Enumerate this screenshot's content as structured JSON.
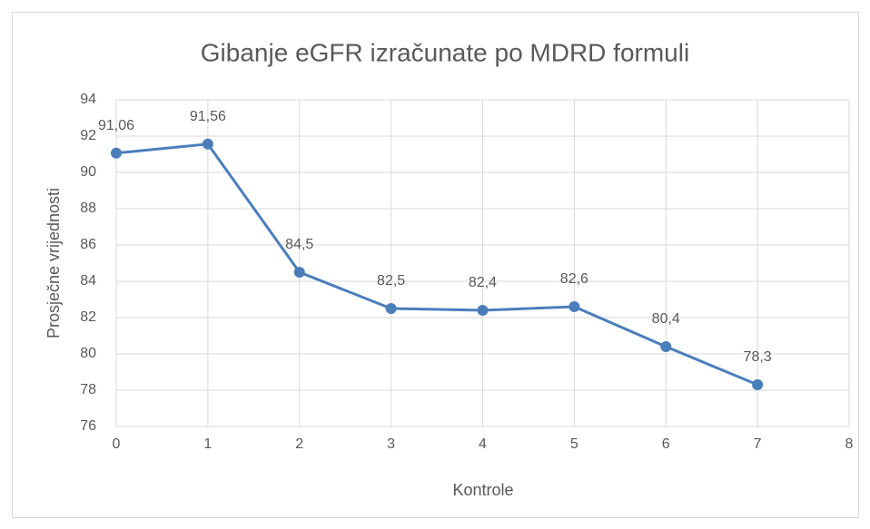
{
  "chart_data": {
    "type": "line",
    "title": "Gibanje eGFR izračunate po MDRD formuli",
    "x_label": "Kontrole",
    "y_label": "Prosječne vrijednosti",
    "x": [
      0,
      1,
      2,
      3,
      4,
      5,
      6,
      7
    ],
    "values": [
      91.06,
      91.56,
      84.5,
      82.5,
      82.4,
      82.6,
      80.4,
      78.3
    ],
    "value_labels": [
      "91,06",
      "91,56",
      "84,5",
      "82,5",
      "82,4",
      "82,6",
      "80,4",
      "78,3"
    ],
    "color": "#4a7ebb",
    "xlim": [
      0,
      8
    ],
    "xticks": [
      0,
      1,
      2,
      3,
      4,
      5,
      6,
      7,
      8
    ],
    "ylim": [
      76,
      94
    ],
    "yticks": [
      76,
      78,
      80,
      82,
      84,
      86,
      88,
      90,
      92,
      94
    ],
    "grid": true
  }
}
